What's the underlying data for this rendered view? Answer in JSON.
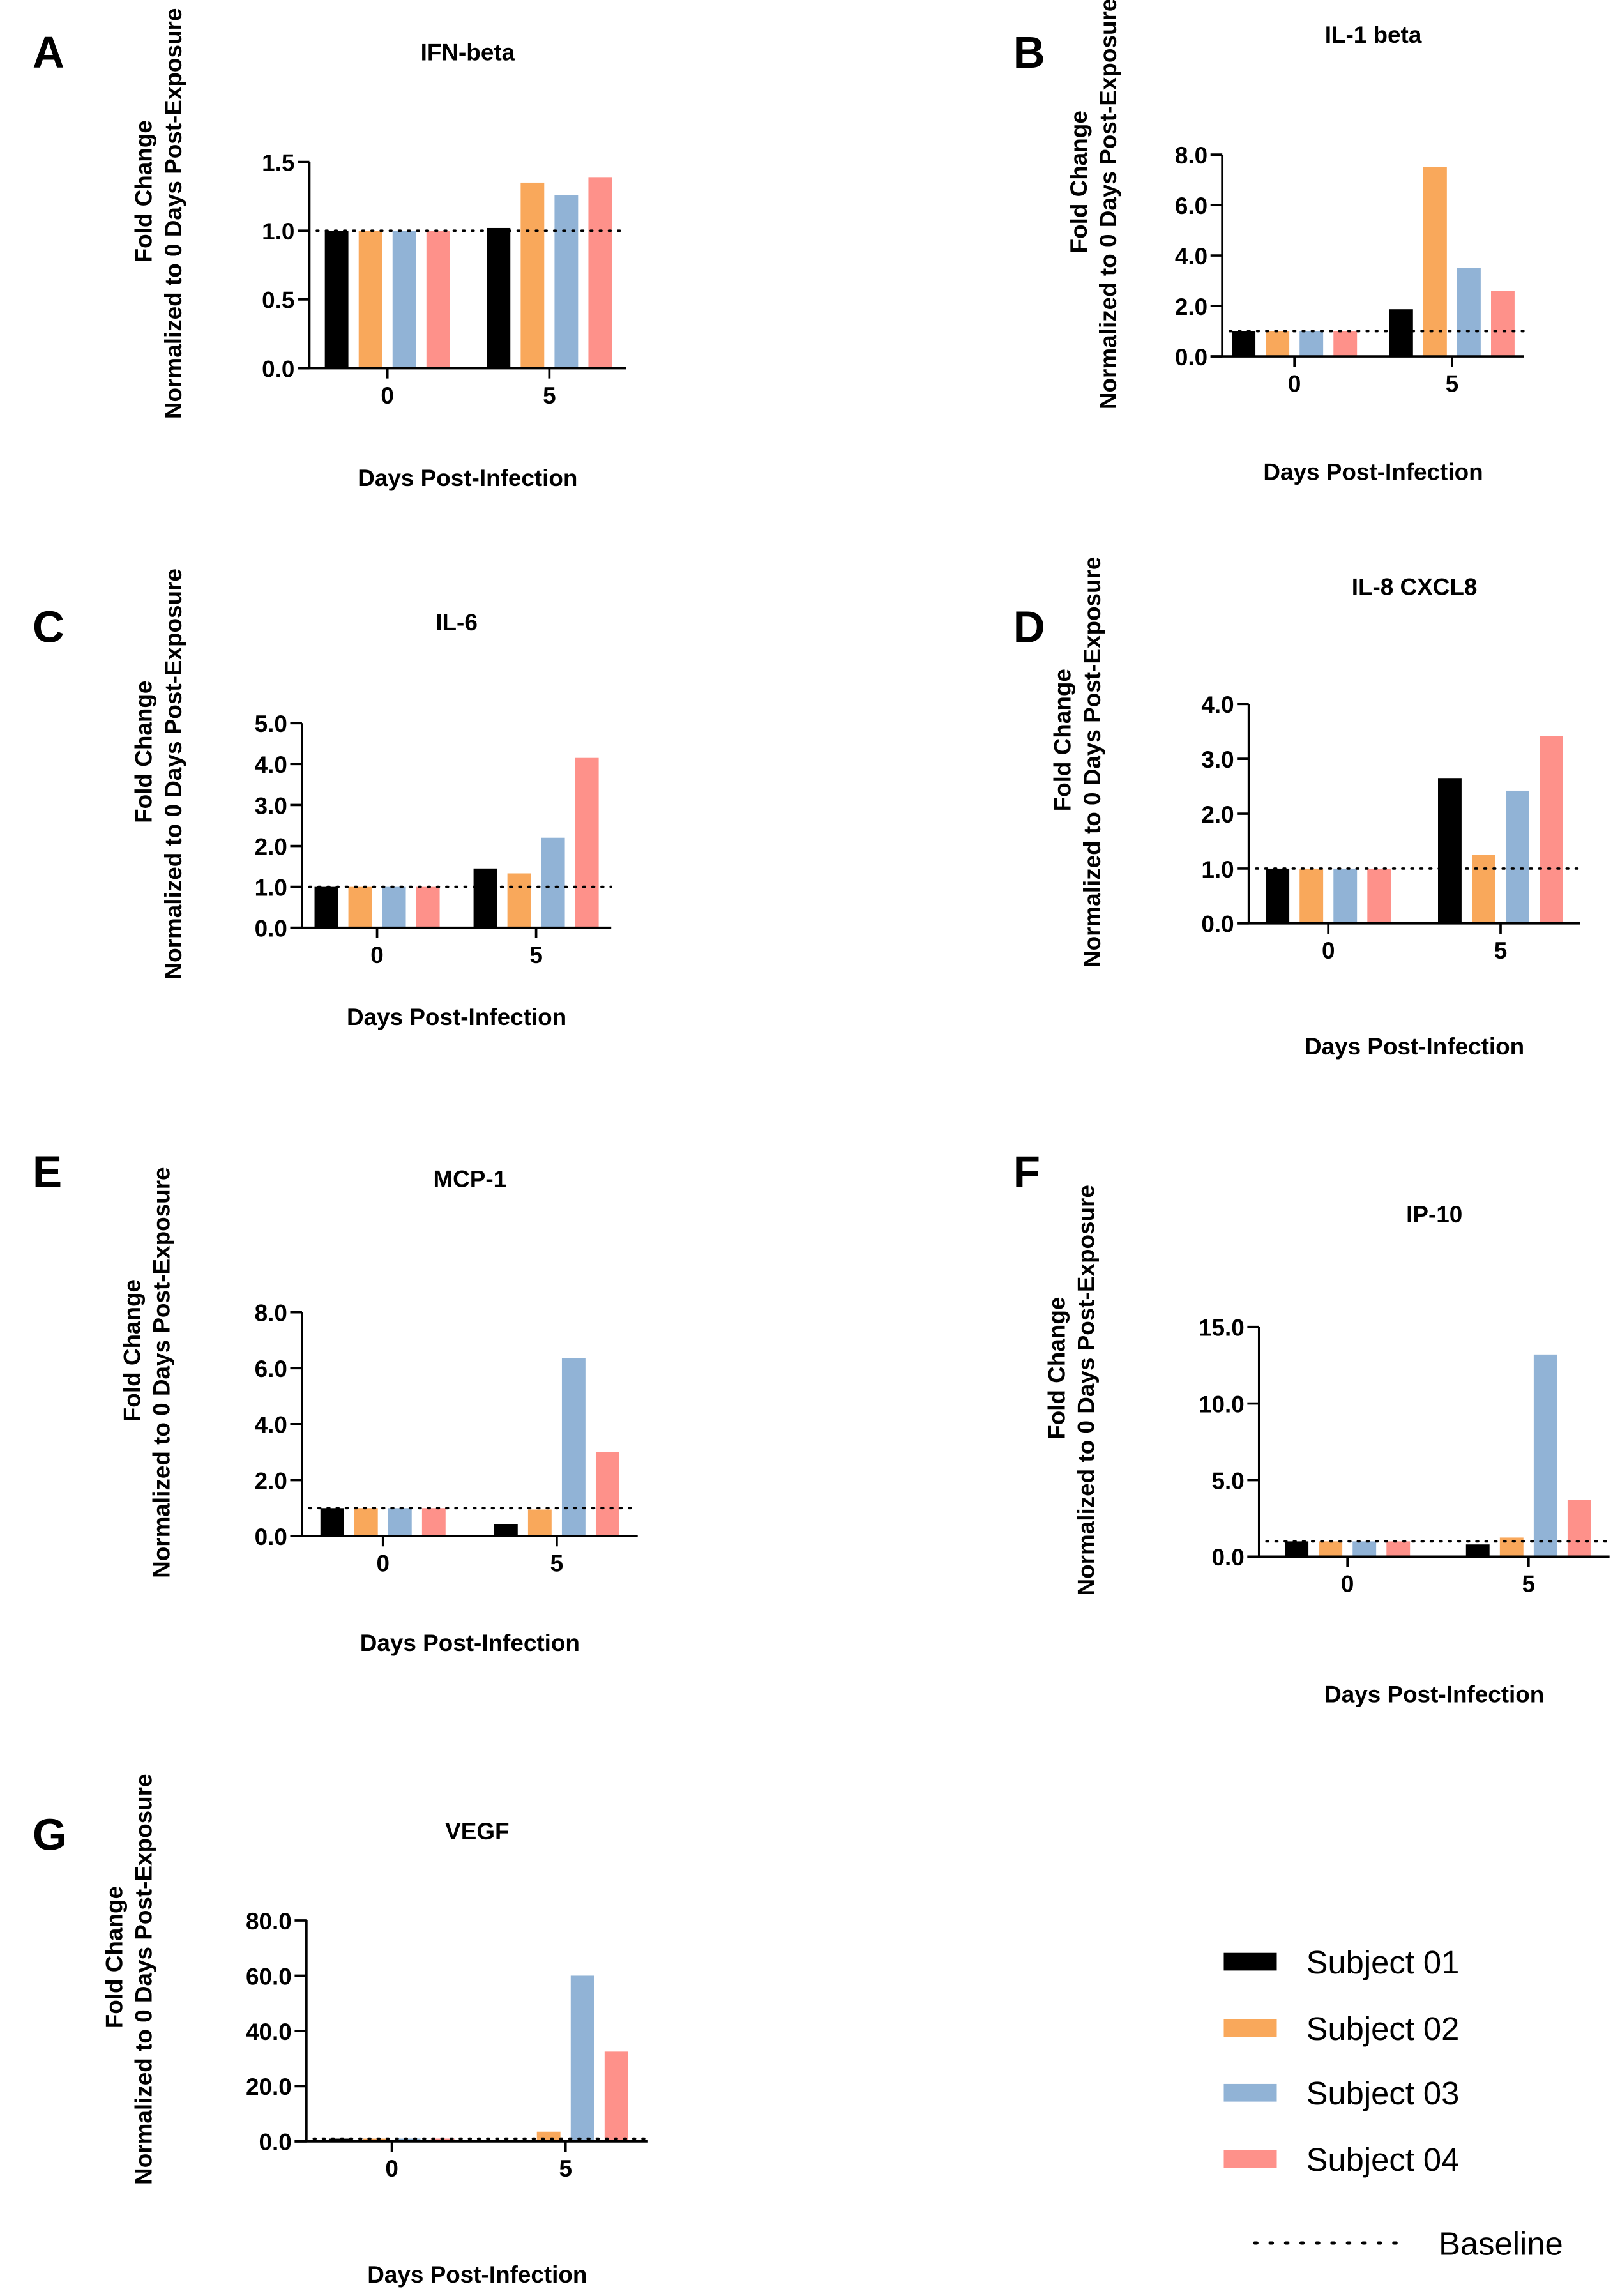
{
  "colors": {
    "subject_01": "#000000",
    "subject_02": "#F9A85B",
    "subject_03": "#91B3D6",
    "subject_04": "#FE918A"
  },
  "legend": {
    "items": [
      "Subject 01",
      "Subject 02",
      "Subject 03",
      "Subject 04"
    ],
    "baseline_label": "Baseline"
  },
  "chart_data": [
    {
      "panel": "A",
      "type": "bar",
      "title": "IFN-beta",
      "xlabel": "Days Post-Infection",
      "ylabel": [
        "Fold Change",
        "Normalized to 0 Days Post-Exposure"
      ],
      "categories": [
        "0",
        "5"
      ],
      "ylim": [
        0,
        1.5
      ],
      "yticks": [
        "0.0",
        "0.5",
        "1.0",
        "1.5"
      ],
      "baseline": 1.0,
      "series": [
        {
          "name": "Subject 01",
          "values": [
            1.0,
            1.02
          ]
        },
        {
          "name": "Subject 02",
          "values": [
            1.0,
            1.35
          ]
        },
        {
          "name": "Subject 03",
          "values": [
            1.0,
            1.26
          ]
        },
        {
          "name": "Subject 04",
          "values": [
            1.0,
            1.39
          ]
        }
      ]
    },
    {
      "panel": "B",
      "type": "bar",
      "title": "IL-1 beta",
      "xlabel": "Days Post-Infection",
      "ylabel": [
        "Fold Change",
        "Normalized to 0 Days Post-Exposure"
      ],
      "categories": [
        "0",
        "5"
      ],
      "ylim": [
        0,
        8
      ],
      "yticks": [
        "0.0",
        "2.0",
        "4.0",
        "6.0",
        "8.0"
      ],
      "baseline": 1.0,
      "series": [
        {
          "name": "Subject 01",
          "values": [
            1.0,
            1.87
          ]
        },
        {
          "name": "Subject 02",
          "values": [
            1.0,
            7.5
          ]
        },
        {
          "name": "Subject 03",
          "values": [
            1.0,
            3.5
          ]
        },
        {
          "name": "Subject 04",
          "values": [
            1.0,
            2.6
          ]
        }
      ]
    },
    {
      "panel": "C",
      "type": "bar",
      "title": "IL-6",
      "xlabel": "Days Post-Infection",
      "ylabel": [
        "Fold Change",
        "Normalized to 0 Days Post-Exposure"
      ],
      "categories": [
        "0",
        "5"
      ],
      "ylim": [
        0,
        5
      ],
      "yticks": [
        "0.0",
        "1.0",
        "2.0",
        "3.0",
        "4.0",
        "5.0"
      ],
      "baseline": 1.0,
      "series": [
        {
          "name": "Subject 01",
          "values": [
            1.0,
            1.45
          ]
        },
        {
          "name": "Subject 02",
          "values": [
            1.0,
            1.33
          ]
        },
        {
          "name": "Subject 03",
          "values": [
            1.0,
            2.2
          ]
        },
        {
          "name": "Subject 04",
          "values": [
            1.0,
            4.15
          ]
        }
      ]
    },
    {
      "panel": "D",
      "type": "bar",
      "title": "IL-8 CXCL8",
      "xlabel": "Days Post-Infection",
      "ylabel": [
        "Fold Change",
        "Normalized to 0 Days Post-Exposure"
      ],
      "categories": [
        "0",
        "5"
      ],
      "ylim": [
        0,
        4
      ],
      "yticks": [
        "0.0",
        "1.0",
        "2.0",
        "3.0",
        "4.0"
      ],
      "baseline": 1.0,
      "series": [
        {
          "name": "Subject 01",
          "values": [
            1.0,
            2.65
          ]
        },
        {
          "name": "Subject 02",
          "values": [
            1.0,
            1.25
          ]
        },
        {
          "name": "Subject 03",
          "values": [
            1.0,
            2.42
          ]
        },
        {
          "name": "Subject 04",
          "values": [
            1.0,
            3.42
          ]
        }
      ]
    },
    {
      "panel": "E",
      "type": "bar",
      "title": "MCP-1",
      "xlabel": "Days Post-Infection",
      "ylabel": [
        "Fold Change",
        "Normalized to 0 Days Post-Exposure"
      ],
      "categories": [
        "0",
        "5"
      ],
      "ylim": [
        0,
        8
      ],
      "yticks": [
        "0.0",
        "2.0",
        "4.0",
        "6.0",
        "8.0"
      ],
      "baseline": 1.0,
      "series": [
        {
          "name": "Subject 01",
          "values": [
            1.0,
            0.42
          ]
        },
        {
          "name": "Subject 02",
          "values": [
            1.0,
            0.95
          ]
        },
        {
          "name": "Subject 03",
          "values": [
            1.0,
            6.35
          ]
        },
        {
          "name": "Subject 04",
          "values": [
            1.0,
            3.0
          ]
        }
      ]
    },
    {
      "panel": "F",
      "type": "bar",
      "title": "IP-10",
      "xlabel": "Days Post-Infection",
      "ylabel": [
        "Fold Change",
        "Normalized to 0 Days Post-Exposure"
      ],
      "categories": [
        "0",
        "5"
      ],
      "ylim": [
        0,
        15
      ],
      "yticks": [
        "0.0",
        "5.0",
        "10.0",
        "15.0"
      ],
      "baseline": 1.0,
      "series": [
        {
          "name": "Subject 01",
          "values": [
            1.0,
            0.8
          ]
        },
        {
          "name": "Subject 02",
          "values": [
            1.0,
            1.25
          ]
        },
        {
          "name": "Subject 03",
          "values": [
            1.0,
            13.2
          ]
        },
        {
          "name": "Subject 04",
          "values": [
            1.0,
            3.7
          ]
        }
      ]
    },
    {
      "panel": "G",
      "type": "bar",
      "title": "VEGF",
      "xlabel": "Days Post-Infection",
      "ylabel": [
        "Fold Change",
        "Normalized to 0 Days Post-Exposure"
      ],
      "categories": [
        "0",
        "5"
      ],
      "ylim": [
        0,
        80
      ],
      "yticks": [
        "0.0",
        "20.0",
        "40.0",
        "60.0",
        "80.0"
      ],
      "baseline": 1.0,
      "series": [
        {
          "name": "Subject 01",
          "values": [
            1.0,
            0.0
          ]
        },
        {
          "name": "Subject 02",
          "values": [
            1.0,
            3.5
          ]
        },
        {
          "name": "Subject 03",
          "values": [
            1.0,
            60.0
          ]
        },
        {
          "name": "Subject 04",
          "values": [
            1.0,
            32.5
          ]
        }
      ]
    }
  ]
}
